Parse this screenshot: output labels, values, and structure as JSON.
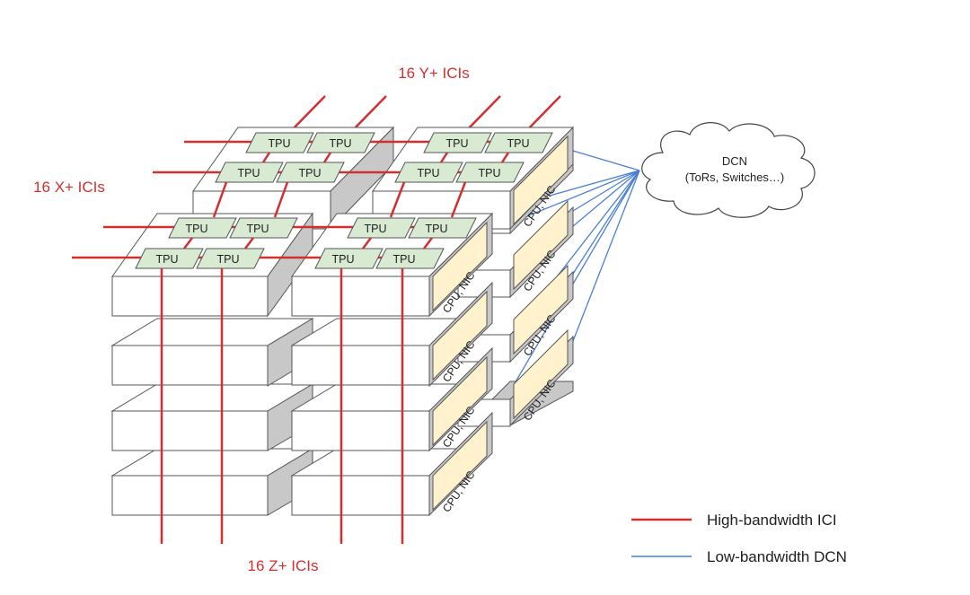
{
  "labels": {
    "y_ici": "16 Y+ ICIs",
    "x_ici": "16 X+ ICIs",
    "z_ici": "16 Z+ ICIs"
  },
  "chip_label": "TPU",
  "host_label": "CPU, NIC",
  "cloud": {
    "title": "DCN",
    "subtitle": "(ToRs, Switches…)"
  },
  "legend": {
    "ici": "High-bandwidth ICI",
    "dcn": "Low-bandwidth DCN"
  },
  "colors": {
    "ici": "#d32f2f",
    "dcn": "#4a7fd4",
    "chip_fill": "#d9ead3",
    "host_fill": "#fff2cc",
    "tray_front": "#ffffff",
    "tray_side": "#c8c8c8"
  }
}
